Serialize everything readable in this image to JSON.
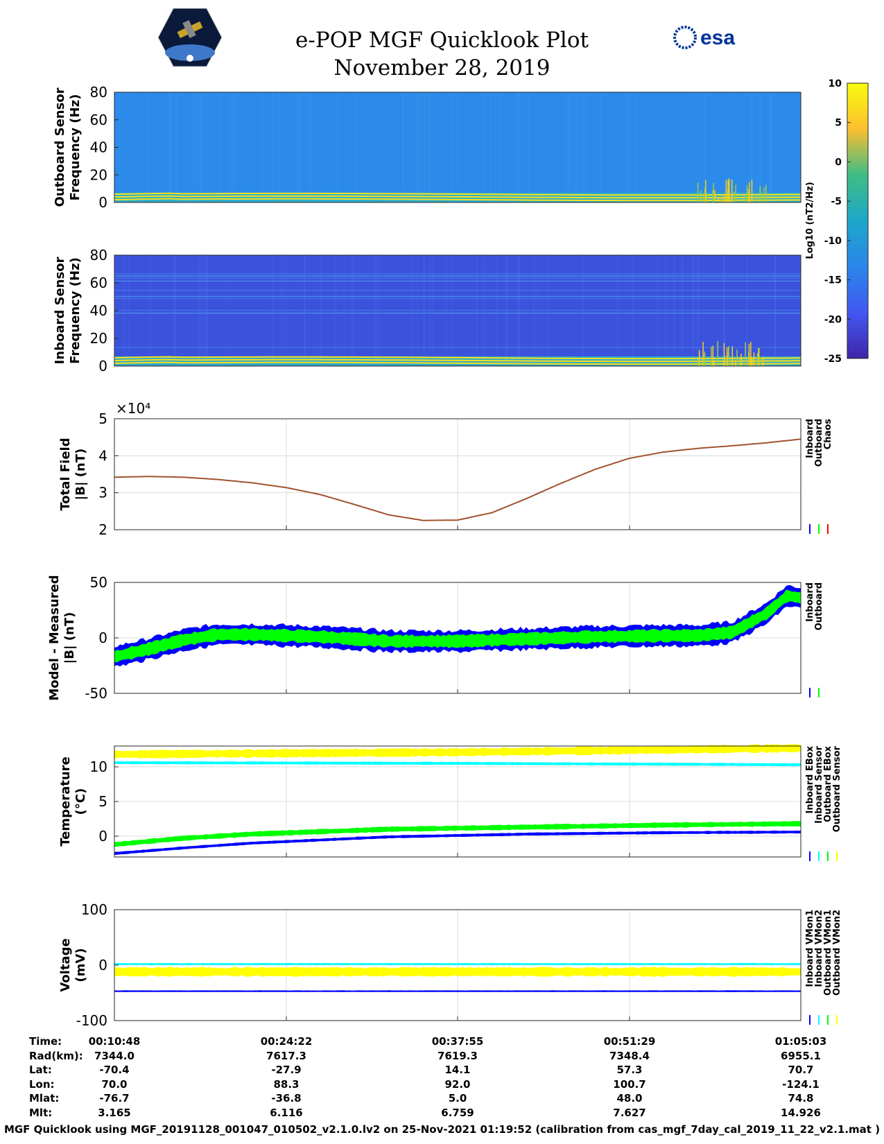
{
  "header": {
    "title": "e-POP MGF Quicklook Plot",
    "date": "November 28, 2019",
    "left_logo": "cassiope-satellite-logo",
    "right_logo_text": "esa"
  },
  "colorbar": {
    "ticks": [
      "10",
      "5",
      "0",
      "-5",
      "-10",
      "-15",
      "-20",
      "-25"
    ],
    "label": "Log10 (nT2/Hz)",
    "colors": [
      "#f9fb0e",
      "#fbbf2f",
      "#3fbd84",
      "#1ea7c9",
      "#2a86ea",
      "#4258f2",
      "#3e26a8"
    ]
  },
  "chart_data": [
    {
      "type": "heatmap",
      "name": "outboard-spectrogram",
      "ylabel": "Outboard Sensor Frequency (Hz)",
      "yticks": [
        "80",
        "60",
        "40",
        "20",
        "0"
      ],
      "ylim": [
        0,
        80
      ]
    },
    {
      "type": "heatmap",
      "name": "inboard-spectrogram",
      "ylabel": "Inboard Sensor Frequency (Hz)",
      "yticks": [
        "80",
        "60",
        "40",
        "20",
        "0"
      ],
      "ylim": [
        0,
        80
      ]
    },
    {
      "type": "line",
      "name": "total-field",
      "ylabel_line1": "Total Field",
      "ylabel_line2": "|B| (nT)",
      "exponent": "×10⁴",
      "yticks": [
        "5",
        "4",
        "3",
        "2"
      ],
      "ylim": [
        2,
        5
      ],
      "legend": [
        "Inboard",
        "Outboard",
        "Chaos"
      ],
      "legend_colors": [
        "#0000ff",
        "#00ff00",
        "#ff0000"
      ],
      "series": [
        {
          "name": "Chaos",
          "color": "#a0522d",
          "x": [
            0,
            0.05,
            0.1,
            0.15,
            0.2,
            0.25,
            0.3,
            0.35,
            0.4,
            0.45,
            0.5,
            0.55,
            0.6,
            0.65,
            0.7,
            0.75,
            0.8,
            0.85,
            0.9,
            0.95,
            1.0
          ],
          "values": [
            3.42,
            3.44,
            3.42,
            3.36,
            3.27,
            3.14,
            2.95,
            2.68,
            2.4,
            2.25,
            2.26,
            2.46,
            2.84,
            3.25,
            3.63,
            3.93,
            4.1,
            4.2,
            4.27,
            4.35,
            4.45
          ]
        }
      ]
    },
    {
      "type": "line",
      "name": "model-minus-measured",
      "ylabel_line1": "Model - Measured",
      "ylabel_line2": "|B| (nT)",
      "yticks": [
        "50",
        "0",
        "-50"
      ],
      "ylim": [
        -50,
        50
      ],
      "legend": [
        "Inboard",
        "Outboard"
      ],
      "legend_colors": [
        "#0000ff",
        "#00ff00"
      ],
      "series": [
        {
          "name": "Inboard",
          "color": "#0000ff",
          "halfwidth": 9,
          "x": [
            0,
            0.05,
            0.1,
            0.15,
            0.2,
            0.3,
            0.4,
            0.5,
            0.6,
            0.7,
            0.8,
            0.85,
            0.9,
            0.95,
            0.98,
            1.0
          ],
          "values": [
            -17,
            -10,
            -2,
            3,
            3,
            1,
            -3,
            -3,
            -1,
            1,
            2,
            2,
            5,
            22,
            38,
            36
          ]
        },
        {
          "name": "Outboard",
          "color": "#00ff00",
          "halfwidth": 5,
          "x": [
            0,
            0.05,
            0.1,
            0.15,
            0.2,
            0.3,
            0.4,
            0.5,
            0.6,
            0.7,
            0.8,
            0.85,
            0.9,
            0.95,
            0.98,
            1.0
          ],
          "values": [
            -17,
            -10,
            -2,
            3,
            3,
            1,
            -3,
            -3,
            -1,
            1,
            2,
            2,
            5,
            22,
            38,
            36
          ]
        }
      ]
    },
    {
      "type": "line",
      "name": "temperature",
      "ylabel_line1": "Temperature",
      "ylabel_line2": "(°C)",
      "yticks": [
        "10",
        "5",
        "0"
      ],
      "ylim": [
        -3,
        13
      ],
      "legend": [
        "Inboard EBox",
        "Inboard Sensor",
        "Outboard EBox",
        "Outboard Sensor"
      ],
      "legend_colors": [
        "#0000ff",
        "#00ffff",
        "#00ff00",
        "#ffff00"
      ],
      "series": [
        {
          "name": "Outboard Sensor",
          "color": "#ffff00",
          "halfwidth": 0.5,
          "x": [
            0,
            0.5,
            1.0
          ],
          "values": [
            11.8,
            12.1,
            12.7
          ]
        },
        {
          "name": "Inboard Sensor",
          "color": "#00ffff",
          "halfwidth": 0.15,
          "x": [
            0,
            0.5,
            1.0
          ],
          "values": [
            10.6,
            10.5,
            10.3
          ]
        },
        {
          "name": "Outboard EBox",
          "color": "#00ff00",
          "halfwidth": 0.3,
          "x": [
            0,
            0.1,
            0.2,
            0.4,
            0.6,
            0.8,
            1.0
          ],
          "values": [
            -1.2,
            -0.3,
            0.3,
            1.0,
            1.3,
            1.6,
            1.8
          ]
        },
        {
          "name": "Inboard EBox",
          "color": "#0000ff",
          "halfwidth": 0.15,
          "x": [
            0,
            0.1,
            0.2,
            0.4,
            0.6,
            0.8,
            1.0
          ],
          "values": [
            -2.5,
            -1.7,
            -1.0,
            -0.1,
            0.3,
            0.5,
            0.6
          ]
        }
      ]
    },
    {
      "type": "line",
      "name": "voltage",
      "ylabel_line1": "Voltage",
      "ylabel_line2": "(mV)",
      "yticks": [
        "100",
        "0",
        "-100"
      ],
      "ylim": [
        -100,
        100
      ],
      "legend": [
        "Inboard VMon1",
        "Inboard VMon2",
        "Outboard VMon1",
        "Outboard VMon2"
      ],
      "legend_colors": [
        "#0000ff",
        "#00ffff",
        "#00ff00",
        "#ffff00"
      ],
      "series": [
        {
          "name": "Inboard VMon2",
          "color": "#00ffff",
          "halfwidth": 1,
          "x": [
            0,
            1.0
          ],
          "values": [
            2,
            2
          ]
        },
        {
          "name": "Outboard VMon2",
          "color": "#ffff00",
          "halfwidth": 7,
          "x": [
            0,
            1.0
          ],
          "values": [
            -12,
            -12
          ]
        },
        {
          "name": "Inboard VMon1",
          "color": "#0000ff",
          "halfwidth": 0.8,
          "x": [
            0,
            1.0
          ],
          "values": [
            -47,
            -47
          ]
        }
      ]
    }
  ],
  "xaxis": {
    "rows": [
      {
        "label": "Time:",
        "values": [
          "00:10:48",
          "00:24:22",
          "00:37:55",
          "00:51:29",
          "01:05:03"
        ]
      },
      {
        "label": "Rad(km):",
        "values": [
          "7344.0",
          "7617.3",
          "7619.3",
          "7348.4",
          "6955.1"
        ]
      },
      {
        "label": "Lat:",
        "values": [
          "-70.4",
          "-27.9",
          "14.1",
          "57.3",
          "70.7"
        ]
      },
      {
        "label": "Lon:",
        "values": [
          "70.0",
          "88.3",
          "92.0",
          "100.7",
          "-124.1"
        ]
      },
      {
        "label": "Mlat:",
        "values": [
          "-76.7",
          "-36.8",
          "5.0",
          "48.0",
          "74.8"
        ]
      },
      {
        "label": "Mlt:",
        "values": [
          "3.165",
          "6.116",
          "6.759",
          "7.627",
          "14.926"
        ]
      }
    ]
  },
  "footer": "MGF Quicklook using MGF_20191128_001047_010502_v2.1.0.lv2 on 25-Nov-2021 01:19:52 (calibration from cas_mgf_7day_cal_2019_11_22_v2.1.mat )"
}
